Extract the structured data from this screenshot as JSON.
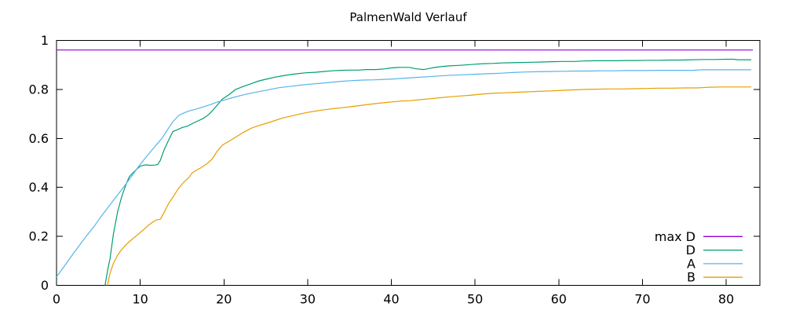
{
  "title": "PalmenWald Verlauf",
  "colors": {
    "axis": "#000000",
    "background": "#ffffff",
    "max_d": "#9400d3",
    "d": "#009e73",
    "a": "#56b4e9",
    "b": "#e69f00"
  },
  "legend": {
    "entries": [
      {
        "label": "max D",
        "series": "max D"
      },
      {
        "label": "D",
        "series": "D"
      },
      {
        "label": "A",
        "series": "A"
      },
      {
        "label": "B",
        "series": "B"
      }
    ]
  },
  "chart_data": {
    "type": "line",
    "title": "PalmenWald Verlauf",
    "xlabel": "",
    "ylabel": "",
    "xlim": [
      0,
      84
    ],
    "ylim": [
      0,
      1
    ],
    "xticks": [
      0,
      10,
      20,
      30,
      40,
      50,
      60,
      70,
      80
    ],
    "yticks": [
      0,
      0.2,
      0.4,
      0.6,
      0.8,
      1
    ],
    "grid": false,
    "legend_position": "inside-bottom-right",
    "series": [
      {
        "name": "max D",
        "color": "#9400d3",
        "points": [
          [
            0,
            0.961
          ],
          [
            83.2,
            0.961
          ]
        ]
      },
      {
        "name": "D",
        "color": "#009e73",
        "points": [
          [
            5.8,
            0.0
          ],
          [
            6.1,
            0.06
          ],
          [
            6.4,
            0.11
          ],
          [
            6.8,
            0.21
          ],
          [
            7.3,
            0.3
          ],
          [
            7.8,
            0.364
          ],
          [
            8.3,
            0.412
          ],
          [
            8.7,
            0.444
          ],
          [
            9.2,
            0.462
          ],
          [
            9.7,
            0.478
          ],
          [
            10.1,
            0.488
          ],
          [
            10.7,
            0.492
          ],
          [
            11.2,
            0.49
          ],
          [
            11.7,
            0.491
          ],
          [
            12.1,
            0.494
          ],
          [
            12.4,
            0.51
          ],
          [
            12.9,
            0.557
          ],
          [
            13.5,
            0.6
          ],
          [
            13.9,
            0.628
          ],
          [
            14.4,
            0.635
          ],
          [
            15.0,
            0.644
          ],
          [
            15.7,
            0.651
          ],
          [
            16.3,
            0.662
          ],
          [
            17.0,
            0.673
          ],
          [
            17.6,
            0.683
          ],
          [
            18.2,
            0.698
          ],
          [
            18.8,
            0.72
          ],
          [
            19.3,
            0.74
          ],
          [
            19.8,
            0.76
          ],
          [
            20.5,
            0.776
          ],
          [
            21.4,
            0.8
          ],
          [
            22.3,
            0.812
          ],
          [
            23.3,
            0.824
          ],
          [
            24.2,
            0.835
          ],
          [
            25.2,
            0.843
          ],
          [
            26.1,
            0.85
          ],
          [
            27.1,
            0.856
          ],
          [
            28.0,
            0.861
          ],
          [
            29.0,
            0.865
          ],
          [
            29.8,
            0.868
          ],
          [
            30.9,
            0.87
          ],
          [
            31.9,
            0.873
          ],
          [
            32.9,
            0.876
          ],
          [
            33.9,
            0.878
          ],
          [
            34.9,
            0.879
          ],
          [
            36.0,
            0.879
          ],
          [
            37.0,
            0.881
          ],
          [
            38.2,
            0.881
          ],
          [
            39.2,
            0.884
          ],
          [
            40.1,
            0.888
          ],
          [
            41.1,
            0.89
          ],
          [
            42.1,
            0.89
          ],
          [
            43.0,
            0.884
          ],
          [
            43.9,
            0.881
          ],
          [
            44.9,
            0.888
          ],
          [
            45.9,
            0.893
          ],
          [
            46.9,
            0.896
          ],
          [
            48.0,
            0.898
          ],
          [
            48.9,
            0.9
          ],
          [
            50.0,
            0.903
          ],
          [
            51.0,
            0.905
          ],
          [
            52.1,
            0.906
          ],
          [
            53.2,
            0.908
          ],
          [
            54.4,
            0.909
          ],
          [
            55.6,
            0.91
          ],
          [
            56.8,
            0.911
          ],
          [
            58.0,
            0.912
          ],
          [
            59.2,
            0.913
          ],
          [
            60.5,
            0.914
          ],
          [
            61.8,
            0.914
          ],
          [
            63.0,
            0.916
          ],
          [
            64.2,
            0.917
          ],
          [
            65.5,
            0.917
          ],
          [
            66.8,
            0.917
          ],
          [
            68.0,
            0.918
          ],
          [
            69.3,
            0.918
          ],
          [
            70.6,
            0.919
          ],
          [
            72.0,
            0.919
          ],
          [
            73.3,
            0.92
          ],
          [
            74.6,
            0.92
          ],
          [
            76.0,
            0.921
          ],
          [
            77.3,
            0.922
          ],
          [
            78.6,
            0.922
          ],
          [
            80.0,
            0.923
          ],
          [
            80.9,
            0.923
          ],
          [
            81.4,
            0.921
          ],
          [
            82.2,
            0.921
          ],
          [
            83.0,
            0.921
          ]
        ]
      },
      {
        "name": "A",
        "color": "#56b4e9",
        "points": [
          [
            0,
            0.035
          ],
          [
            0.9,
            0.077
          ],
          [
            1.8,
            0.12
          ],
          [
            2.7,
            0.162
          ],
          [
            3.6,
            0.203
          ],
          [
            4.5,
            0.241
          ],
          [
            5.4,
            0.285
          ],
          [
            6.3,
            0.325
          ],
          [
            7.2,
            0.365
          ],
          [
            8.1,
            0.405
          ],
          [
            9.0,
            0.447
          ],
          [
            9.9,
            0.49
          ],
          [
            10.8,
            0.528
          ],
          [
            11.7,
            0.565
          ],
          [
            12.6,
            0.6
          ],
          [
            13.2,
            0.632
          ],
          [
            13.9,
            0.668
          ],
          [
            14.6,
            0.694
          ],
          [
            15.2,
            0.704
          ],
          [
            15.8,
            0.712
          ],
          [
            16.6,
            0.719
          ],
          [
            17.4,
            0.727
          ],
          [
            18.3,
            0.737
          ],
          [
            19.2,
            0.748
          ],
          [
            20.1,
            0.757
          ],
          [
            21.0,
            0.766
          ],
          [
            22.0,
            0.775
          ],
          [
            23.0,
            0.783
          ],
          [
            24.2,
            0.791
          ],
          [
            25.4,
            0.799
          ],
          [
            26.6,
            0.807
          ],
          [
            27.8,
            0.812
          ],
          [
            29.0,
            0.817
          ],
          [
            30.2,
            0.821
          ],
          [
            31.5,
            0.825
          ],
          [
            32.8,
            0.829
          ],
          [
            34.0,
            0.833
          ],
          [
            35.3,
            0.836
          ],
          [
            36.6,
            0.838
          ],
          [
            38.0,
            0.839
          ],
          [
            39.2,
            0.841
          ],
          [
            40.4,
            0.843
          ],
          [
            41.7,
            0.846
          ],
          [
            43.0,
            0.849
          ],
          [
            44.4,
            0.852
          ],
          [
            45.8,
            0.855
          ],
          [
            47.2,
            0.858
          ],
          [
            48.6,
            0.86
          ],
          [
            50.0,
            0.862
          ],
          [
            51.5,
            0.864
          ],
          [
            53.0,
            0.866
          ],
          [
            54.5,
            0.869
          ],
          [
            56.0,
            0.871
          ],
          [
            57.5,
            0.872
          ],
          [
            59.0,
            0.873
          ],
          [
            60.5,
            0.874
          ],
          [
            62.0,
            0.875
          ],
          [
            63.5,
            0.875
          ],
          [
            65.0,
            0.876
          ],
          [
            66.5,
            0.876
          ],
          [
            68.0,
            0.877
          ],
          [
            70.0,
            0.877
          ],
          [
            72.0,
            0.878
          ],
          [
            74.0,
            0.878
          ],
          [
            76.0,
            0.878
          ],
          [
            77.0,
            0.88
          ],
          [
            79.0,
            0.88
          ],
          [
            81.0,
            0.88
          ],
          [
            83.0,
            0.88
          ]
        ]
      },
      {
        "name": "B",
        "color": "#e69f00",
        "points": [
          [
            6.1,
            0.0
          ],
          [
            6.4,
            0.05
          ],
          [
            6.8,
            0.09
          ],
          [
            7.3,
            0.123
          ],
          [
            7.8,
            0.147
          ],
          [
            8.3,
            0.166
          ],
          [
            8.8,
            0.181
          ],
          [
            9.2,
            0.193
          ],
          [
            9.7,
            0.207
          ],
          [
            10.1,
            0.219
          ],
          [
            10.6,
            0.233
          ],
          [
            11.0,
            0.246
          ],
          [
            11.5,
            0.258
          ],
          [
            11.9,
            0.267
          ],
          [
            12.4,
            0.27
          ],
          [
            12.9,
            0.3
          ],
          [
            13.4,
            0.335
          ],
          [
            14.0,
            0.365
          ],
          [
            14.6,
            0.397
          ],
          [
            15.2,
            0.421
          ],
          [
            15.8,
            0.44
          ],
          [
            16.2,
            0.459
          ],
          [
            16.7,
            0.47
          ],
          [
            17.3,
            0.481
          ],
          [
            18.0,
            0.497
          ],
          [
            18.6,
            0.516
          ],
          [
            19.2,
            0.548
          ],
          [
            19.8,
            0.572
          ],
          [
            20.6,
            0.588
          ],
          [
            21.4,
            0.605
          ],
          [
            22.3,
            0.624
          ],
          [
            23.3,
            0.642
          ],
          [
            24.2,
            0.653
          ],
          [
            25.1,
            0.662
          ],
          [
            26.1,
            0.673
          ],
          [
            27.1,
            0.684
          ],
          [
            28.0,
            0.691
          ],
          [
            29.0,
            0.699
          ],
          [
            30.0,
            0.706
          ],
          [
            31.0,
            0.712
          ],
          [
            32.0,
            0.717
          ],
          [
            33.0,
            0.721
          ],
          [
            34.0,
            0.725
          ],
          [
            35.0,
            0.729
          ],
          [
            36.2,
            0.734
          ],
          [
            37.4,
            0.739
          ],
          [
            38.6,
            0.744
          ],
          [
            39.8,
            0.748
          ],
          [
            41.0,
            0.752
          ],
          [
            42.2,
            0.754
          ],
          [
            43.4,
            0.758
          ],
          [
            44.6,
            0.762
          ],
          [
            45.8,
            0.766
          ],
          [
            47.0,
            0.77
          ],
          [
            48.2,
            0.773
          ],
          [
            49.4,
            0.776
          ],
          [
            50.6,
            0.78
          ],
          [
            52.0,
            0.784
          ],
          [
            53.4,
            0.786
          ],
          [
            54.8,
            0.788
          ],
          [
            56.2,
            0.79
          ],
          [
            57.6,
            0.792
          ],
          [
            59.0,
            0.794
          ],
          [
            60.4,
            0.796
          ],
          [
            61.8,
            0.798
          ],
          [
            63.2,
            0.8
          ],
          [
            64.6,
            0.801
          ],
          [
            66.0,
            0.802
          ],
          [
            67.5,
            0.802
          ],
          [
            69.0,
            0.803
          ],
          [
            70.5,
            0.804
          ],
          [
            72.0,
            0.805
          ],
          [
            73.5,
            0.805
          ],
          [
            75.0,
            0.806
          ],
          [
            76.5,
            0.806
          ],
          [
            78.0,
            0.809
          ],
          [
            79.5,
            0.81
          ],
          [
            81.0,
            0.81
          ],
          [
            82.0,
            0.81
          ],
          [
            83.0,
            0.81
          ]
        ]
      }
    ]
  }
}
